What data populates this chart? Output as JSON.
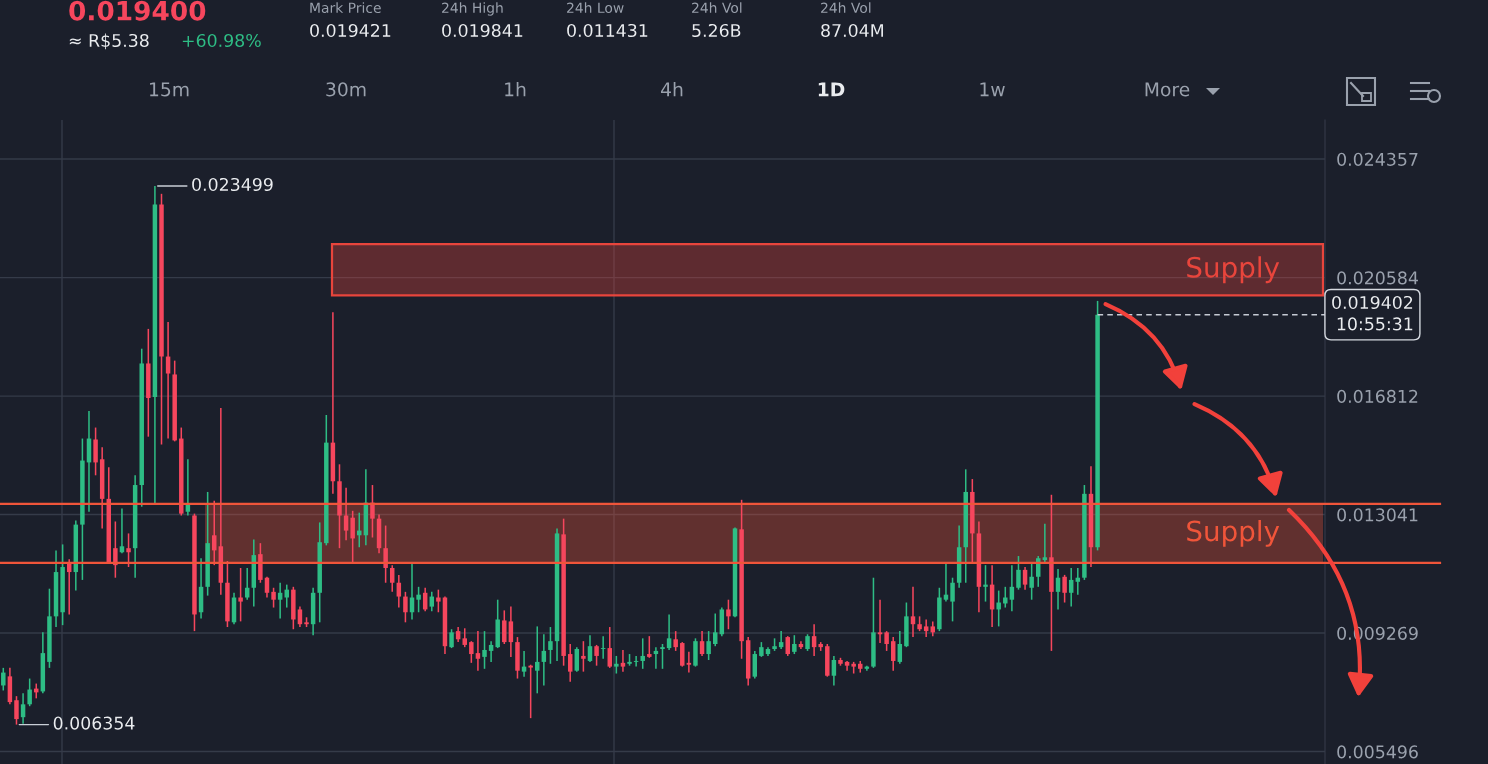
{
  "chart_data": {
    "type": "candlestick",
    "categories": [
      null,
      null,
      null,
      null,
      null,
      null,
      null,
      null,
      null,
      null,
      null,
      null,
      null,
      null,
      null,
      null,
      null,
      null,
      null,
      null,
      null,
      null,
      null,
      null,
      null,
      null,
      null,
      null,
      null,
      null,
      null,
      null,
      null,
      null,
      null,
      null,
      null,
      null,
      null,
      null,
      null,
      null,
      null,
      null,
      null,
      null,
      null,
      null,
      null,
      null,
      null,
      null,
      null,
      null,
      null,
      null,
      null,
      null,
      null,
      null,
      null,
      null,
      null,
      null,
      null,
      null,
      null,
      null,
      null,
      null,
      null,
      null,
      null,
      null,
      null,
      null,
      null,
      null,
      null,
      null,
      null,
      null,
      null,
      null,
      null,
      null,
      null,
      null,
      null,
      null,
      null,
      null,
      null,
      null,
      null,
      null,
      null,
      null,
      null,
      null,
      null,
      null,
      null,
      null,
      null,
      null,
      null,
      null,
      null,
      null,
      null,
      null,
      null,
      null,
      null,
      null,
      null,
      null,
      null,
      null,
      null,
      null,
      null,
      null,
      null,
      null,
      null,
      null,
      null,
      null,
      null,
      null,
      null,
      null,
      null,
      null,
      null,
      null,
      null,
      null,
      null,
      null,
      null,
      null,
      null,
      null,
      null,
      null,
      null,
      null,
      null,
      null,
      null,
      null,
      null,
      null,
      null,
      null,
      null,
      null,
      null,
      null,
      null,
      null,
      null,
      null,
      null,
      null,
      null,
      null,
      null,
      null,
      null,
      null,
      null,
      null,
      null,
      null,
      null,
      null,
      null,
      null,
      null,
      null,
      null,
      null,
      null,
      null,
      null,
      null,
      null,
      null,
      null,
      null,
      null,
      null,
      null,
      null,
      null,
      null,
      null
    ],
    "ohlc": [
      [
        0.0076,
        0.00816,
        0.00744,
        0.00801
      ],
      [
        0.00789,
        0.00816,
        0.007,
        0.00707
      ],
      [
        0.00713,
        0.00726,
        0.006354,
        0.00653
      ],
      [
        0.00659,
        0.00735,
        0.00638,
        0.007
      ],
      [
        0.007,
        0.00782,
        0.00694,
        0.00747
      ],
      [
        0.0075,
        0.00766,
        0.00719,
        0.00738
      ],
      [
        0.00741,
        0.00929,
        0.00735,
        0.00863
      ],
      [
        0.00835,
        0.01068,
        0.00816,
        0.0098
      ],
      [
        0.0098,
        0.0119,
        0.00946,
        0.01121
      ],
      [
        0.00993,
        0.01209,
        0.00952,
        0.01137
      ],
      [
        0.0115,
        0.01162,
        0.00986,
        0.01121
      ],
      [
        0.01121,
        0.01285,
        0.01062,
        0.01272
      ],
      [
        0.01272,
        0.01546,
        0.01096,
        0.01476
      ],
      [
        0.0147,
        0.01634,
        0.01313,
        0.01546
      ],
      [
        0.01543,
        0.01581,
        0.01429,
        0.0147
      ],
      [
        0.0148,
        0.01518,
        0.0126,
        0.01354
      ],
      [
        0.01354,
        0.01455,
        0.01147,
        0.0115
      ],
      [
        0.01197,
        0.01282,
        0.01103,
        0.01143
      ],
      [
        0.01184,
        0.01323,
        0.01181,
        0.01203
      ],
      [
        0.01197,
        0.01244,
        0.01137,
        0.01184
      ],
      [
        0.01197,
        0.01429,
        0.01103,
        0.01398
      ],
      [
        0.01398,
        0.01832,
        0.01329,
        0.01785
      ],
      [
        0.01785,
        0.01895,
        0.01552,
        0.01675
      ],
      [
        0.01678,
        0.023499,
        0.01335,
        0.02291
      ],
      [
        0.02291,
        0.02325,
        0.01527,
        0.01807
      ],
      [
        0.01807,
        0.01917,
        0.01546,
        0.01753
      ],
      [
        0.0175,
        0.01794,
        0.01537,
        0.0154
      ],
      [
        0.01546,
        0.01581,
        0.01301,
        0.01307
      ],
      [
        0.01313,
        0.0148,
        0.01301,
        0.01335
      ],
      [
        0.01301,
        0.01307,
        0.00933,
        0.00986
      ],
      [
        0.00993,
        0.01165,
        0.00973,
        0.01074
      ],
      [
        0.01074,
        0.01376,
        0.01046,
        0.01213
      ],
      [
        0.01238,
        0.01348,
        0.01143,
        0.0119
      ],
      [
        0.01203,
        0.01643,
        0.01049,
        0.01087
      ],
      [
        0.01087,
        0.01156,
        0.00946,
        0.00964
      ],
      [
        0.00961,
        0.01055,
        0.00955,
        0.0104
      ],
      [
        0.0104,
        0.01134,
        0.00964,
        0.01027
      ],
      [
        0.0104,
        0.01134,
        0.01033,
        0.01071
      ],
      [
        0.01071,
        0.01225,
        0.01011,
        0.01175
      ],
      [
        0.01178,
        0.01213,
        0.01087,
        0.01096
      ],
      [
        0.01103,
        0.01106,
        0.0104,
        0.01055
      ],
      [
        0.01058,
        0.01071,
        0.01008,
        0.01033
      ],
      [
        0.01033,
        0.01087,
        0.00973,
        0.01055
      ],
      [
        0.0104,
        0.01081,
        0.01008,
        0.01065
      ],
      [
        0.01065,
        0.01074,
        0.00939,
        0.0097
      ],
      [
        0.01002,
        0.01011,
        0.00946,
        0.00955
      ],
      [
        0.00961,
        0.00977,
        0.00946,
        0.00955
      ],
      [
        0.00955,
        0.01071,
        0.0092,
        0.01055
      ],
      [
        0.01055,
        0.01279,
        0.00961,
        0.01216
      ],
      [
        0.01213,
        0.01621,
        0.01206,
        0.01533
      ],
      [
        0.01533,
        0.01948,
        0.0137,
        0.0141
      ],
      [
        0.0141,
        0.01464,
        0.01197,
        0.01301
      ],
      [
        0.01301,
        0.01389,
        0.01222,
        0.01253
      ],
      [
        0.01294,
        0.01316,
        0.01153,
        0.01228
      ],
      [
        0.01238,
        0.0131,
        0.012,
        0.01253
      ],
      [
        0.01238,
        0.01448,
        0.01206,
        0.01342
      ],
      [
        0.01342,
        0.01398,
        0.01231,
        0.01291
      ],
      [
        0.01291,
        0.01304,
        0.01181,
        0.01197
      ],
      [
        0.01197,
        0.01269,
        0.01087,
        0.01134
      ],
      [
        0.01134,
        0.01143,
        0.01058,
        0.01087
      ],
      [
        0.01087,
        0.01112,
        0.01008,
        0.01043
      ],
      [
        0.01043,
        0.01058,
        0.00961,
        0.00993
      ],
      [
        0.00993,
        0.01147,
        0.0097,
        0.0104
      ],
      [
        0.01033,
        0.01074,
        0.00993,
        0.01049
      ],
      [
        0.01055,
        0.01071,
        0.00996,
        0.01002
      ],
      [
        0.01011,
        0.01058,
        0.00996,
        0.01043
      ],
      [
        0.0104,
        0.01065,
        0.00993,
        0.01027
      ],
      [
        0.0104,
        0.01043,
        0.0086,
        0.00885
      ],
      [
        0.00882,
        0.00939,
        0.00879,
        0.00929
      ],
      [
        0.00933,
        0.00946,
        0.00898,
        0.00907
      ],
      [
        0.0091,
        0.00942,
        0.00882,
        0.00889
      ],
      [
        0.00898,
        0.00901,
        0.00832,
        0.0086
      ],
      [
        0.00863,
        0.00933,
        0.00807,
        0.00845
      ],
      [
        0.00851,
        0.00933,
        0.00813,
        0.00873
      ],
      [
        0.0087,
        0.00901,
        0.00835,
        0.00889
      ],
      [
        0.00882,
        0.01033,
        0.00879,
        0.0097
      ],
      [
        0.00967,
        0.00999,
        0.00892,
        0.00898
      ],
      [
        0.00964,
        0.01011,
        0.00851,
        0.00898
      ],
      [
        0.00898,
        0.00914,
        0.00782,
        0.00807
      ],
      [
        0.00804,
        0.0087,
        0.00788,
        0.0082
      ],
      [
        0.00823,
        0.00826,
        0.00656,
        0.00817
      ],
      [
        0.00807,
        0.00948,
        0.00735,
        0.00835
      ],
      [
        0.00835,
        0.00923,
        0.0076,
        0.0087
      ],
      [
        0.00873,
        0.00946,
        0.00829,
        0.00901
      ],
      [
        0.00901,
        0.0126,
        0.00838,
        0.01244
      ],
      [
        0.01241,
        0.01291,
        0.00823,
        0.00854
      ],
      [
        0.0086,
        0.00892,
        0.00772,
        0.00804
      ],
      [
        0.00807,
        0.00882,
        0.00804,
        0.00876
      ],
      [
        0.00854,
        0.00901,
        0.00804,
        0.00845
      ],
      [
        0.00838,
        0.0092,
        0.00835,
        0.00885
      ],
      [
        0.00885,
        0.00889,
        0.00823,
        0.00854
      ],
      [
        0.00876,
        0.00917,
        0.00845,
        0.00879
      ],
      [
        0.00879,
        0.00946,
        0.00816,
        0.0082
      ],
      [
        0.0082,
        0.00854,
        0.00798,
        0.00829
      ],
      [
        0.00832,
        0.00873,
        0.00804,
        0.0082
      ],
      [
        0.00829,
        0.0086,
        0.00823,
        0.00835
      ],
      [
        0.00835,
        0.00854,
        0.0082,
        0.00838
      ],
      [
        0.00838,
        0.0091,
        0.00813,
        0.00854
      ],
      [
        0.0086,
        0.00917,
        0.00848,
        0.00851
      ],
      [
        0.0086,
        0.00882,
        0.00813,
        0.0087
      ],
      [
        0.00876,
        0.00892,
        0.00813,
        0.00882
      ],
      [
        0.00879,
        0.00986,
        0.00873,
        0.0091
      ],
      [
        0.00907,
        0.00933,
        0.0087,
        0.00882
      ],
      [
        0.00895,
        0.00898,
        0.0082,
        0.00823
      ],
      [
        0.00832,
        0.00867,
        0.00801,
        0.00826
      ],
      [
        0.00823,
        0.0091,
        0.0082,
        0.00901
      ],
      [
        0.00901,
        0.00933,
        0.00854,
        0.0086
      ],
      [
        0.0086,
        0.00933,
        0.00841,
        0.00901
      ],
      [
        0.00892,
        0.00989,
        0.00885,
        0.00929
      ],
      [
        0.00923,
        0.01008,
        0.00917,
        0.01002
      ],
      [
        0.01002,
        0.01033,
        0.00939,
        0.0098
      ],
      [
        0.0098,
        0.01263,
        0.00977,
        0.0126
      ],
      [
        0.01257,
        0.01351,
        0.00845,
        0.00901
      ],
      [
        0.00904,
        0.00914,
        0.0076,
        0.00782
      ],
      [
        0.00788,
        0.0087,
        0.00782,
        0.0086
      ],
      [
        0.00854,
        0.00898,
        0.00851,
        0.00882
      ],
      [
        0.0086,
        0.00882,
        0.00854,
        0.00876
      ],
      [
        0.00876,
        0.0091,
        0.0087,
        0.00885
      ],
      [
        0.00882,
        0.00933,
        0.00876,
        0.00898
      ],
      [
        0.00914,
        0.00917,
        0.00854,
        0.0086
      ],
      [
        0.00867,
        0.0092,
        0.0086,
        0.00892
      ],
      [
        0.00892,
        0.00901,
        0.00876,
        0.00882
      ],
      [
        0.00876,
        0.00923,
        0.0087,
        0.00917
      ],
      [
        0.00917,
        0.00955,
        0.00854,
        0.00882
      ],
      [
        0.00892,
        0.00898,
        0.0087,
        0.00882
      ],
      [
        0.00885,
        0.00892,
        0.00788,
        0.00791
      ],
      [
        0.00791,
        0.00854,
        0.0076,
        0.00841
      ],
      [
        0.00841,
        0.00848,
        0.00823,
        0.00829
      ],
      [
        0.00835,
        0.00838,
        0.00807,
        0.00823
      ],
      [
        0.00829,
        0.00835,
        0.00798,
        0.0082
      ],
      [
        0.00829,
        0.00838,
        0.00801,
        0.00813
      ],
      [
        0.00813,
        0.00823,
        0.00807,
        0.0082
      ],
      [
        0.0082,
        0.01103,
        0.00816,
        0.00929
      ],
      [
        0.00929,
        0.01033,
        0.00895,
        0.00923
      ],
      [
        0.00929,
        0.00933,
        0.0087,
        0.00892
      ],
      [
        0.00901,
        0.00914,
        0.00807,
        0.00838
      ],
      [
        0.00835,
        0.00933,
        0.00829,
        0.00892
      ],
      [
        0.00885,
        0.01024,
        0.00882,
        0.0098
      ],
      [
        0.0098,
        0.01074,
        0.00914,
        0.00955
      ],
      [
        0.00955,
        0.0098,
        0.00933,
        0.00939
      ],
      [
        0.00948,
        0.0097,
        0.00914,
        0.00933
      ],
      [
        0.00948,
        0.00964,
        0.00917,
        0.00929
      ],
      [
        0.00939,
        0.01071,
        0.00933,
        0.0104
      ],
      [
        0.01033,
        0.01147,
        0.01027,
        0.01049
      ],
      [
        0.01027,
        0.01103,
        0.00964,
        0.01087
      ],
      [
        0.01087,
        0.01269,
        0.01071,
        0.012
      ],
      [
        0.012,
        0.01448,
        0.01087,
        0.01376
      ],
      [
        0.01376,
        0.01417,
        0.0115,
        0.01244
      ],
      [
        0.01244,
        0.01282,
        0.00993,
        0.01074
      ],
      [
        0.01074,
        0.01143,
        0.01027,
        0.01081
      ],
      [
        0.01081,
        0.01143,
        0.00946,
        0.01002
      ],
      [
        0.01002,
        0.01062,
        0.00948,
        0.01024
      ],
      [
        0.01021,
        0.01074,
        0.01008,
        0.0104
      ],
      [
        0.01033,
        0.01143,
        0.00996,
        0.01074
      ],
      [
        0.01071,
        0.01172,
        0.01065,
        0.01128
      ],
      [
        0.01128,
        0.01137,
        0.01065,
        0.01081
      ],
      [
        0.01071,
        0.01147,
        0.01033,
        0.01106
      ],
      [
        0.01106,
        0.01172,
        0.01074,
        0.01165
      ],
      [
        0.01159,
        0.01275,
        0.01153,
        0.01168
      ],
      [
        0.01168,
        0.01367,
        0.0087,
        0.01058
      ],
      [
        0.01058,
        0.01131,
        0.01002,
        0.01103
      ],
      [
        0.01106,
        0.01112,
        0.01024,
        0.01055
      ],
      [
        0.01055,
        0.01134,
        0.01011,
        0.01096
      ],
      [
        0.0109,
        0.01134,
        0.01049,
        0.01103
      ],
      [
        0.01103,
        0.01398,
        0.01096,
        0.0137
      ],
      [
        0.0137,
        0.01458,
        0.01137,
        0.012
      ],
      [
        0.012,
        0.019841,
        0.0119,
        0.019402
      ],
      null,
      null,
      null,
      null,
      null,
      null,
      null,
      null,
      null,
      null,
      null,
      null,
      null,
      null,
      null,
      null,
      null,
      null,
      null,
      null,
      null,
      null,
      null,
      null,
      null,
      null,
      null,
      null,
      null,
      null,
      null,
      null,
      null,
      null
    ],
    "ylim": [
      0.0051,
      0.0256
    ],
    "yticks": [
      0.024357,
      0.020584,
      0.016812,
      0.013041,
      0.009269,
      0.005496
    ],
    "grid": "y",
    "tick_labels": "y",
    "ref_lines": [
      {
        "axis": "y",
        "value": 0.019402,
        "label": "0.019402\n10:55:31",
        "color": "#c5cad3",
        "line_style": "dashed"
      },
      {
        "axis": "y",
        "value": 0.01338,
        "color": "#f0553a",
        "line_style": "solid"
      },
      {
        "axis": "y",
        "value": 0.0115,
        "color": "#f0553a",
        "line_style": "solid"
      }
    ],
    "bands": [
      {
        "axis": "y",
        "from": 0.02002,
        "to": 0.02165,
        "label": "Supply",
        "color": "#e8453c"
      },
      {
        "axis": "y",
        "from": 0.0115,
        "to": 0.01338,
        "label": "Supply",
        "color": "#f0553a"
      }
    ],
    "annotations": [
      "0.023499",
      "0.006354",
      "0.019400",
      "≈ R$5.38",
      "+60.98%",
      "Mark Price",
      "0.019421",
      "24h High",
      "0.019841",
      "24h Low",
      "0.011431",
      "24h Vol",
      "5.26B",
      "24h Vol",
      "87.04M",
      "15m",
      "30m",
      "1h",
      "4h",
      "1D",
      "1w",
      "More"
    ]
  }
}
